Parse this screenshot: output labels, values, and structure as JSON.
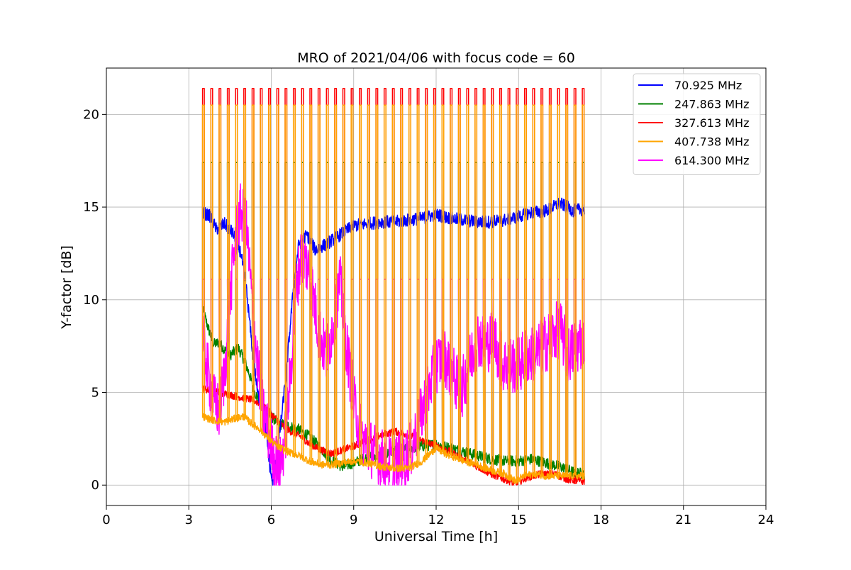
{
  "chart_data": {
    "type": "line",
    "title": "MRO of 2021/04/06 with focus code = 60",
    "xlabel": "Universal Time [h]",
    "ylabel": "Y-factor [dB]",
    "xlim": [
      0,
      24
    ],
    "ylim": [
      -1.1,
      22.5
    ],
    "xticks": [
      "0",
      "3",
      "6",
      "9",
      "12",
      "15",
      "18",
      "21",
      "24"
    ],
    "yticks": [
      "0",
      "5",
      "10",
      "15",
      "20"
    ],
    "grid": true,
    "legend_position": "top-right",
    "x_range_of_data": [
      3.5,
      17.4
    ],
    "calibration_pulses": {
      "count": 47,
      "start_h": 3.5,
      "end_h": 17.32,
      "levels_dB": {
        "327.613 MHz": 21.4,
        "407.738 MHz": 20.5,
        "614.300 MHz": 11.1,
        "247.863 MHz": 17.4
      }
    },
    "series": [
      {
        "name": "70.925 MHz",
        "color": "#0000ff",
        "points": [
          [
            3.5,
            14.7
          ],
          [
            3.8,
            14.5
          ],
          [
            4.0,
            13.8
          ],
          [
            4.3,
            14.1
          ],
          [
            4.6,
            13.6
          ],
          [
            4.9,
            12.5
          ],
          [
            5.1,
            10.5
          ],
          [
            5.3,
            7.5
          ],
          [
            5.5,
            5.0
          ],
          [
            5.7,
            4.0
          ],
          [
            5.8,
            3.0
          ],
          [
            5.95,
            1.0
          ],
          [
            6.05,
            0.1
          ],
          [
            6.2,
            1.5
          ],
          [
            6.4,
            4.0
          ],
          [
            6.6,
            7.0
          ],
          [
            6.8,
            10.5
          ],
          [
            7.0,
            13.0
          ],
          [
            7.3,
            13.5
          ],
          [
            7.6,
            12.7
          ],
          [
            8.0,
            13.0
          ],
          [
            8.5,
            13.5
          ],
          [
            9.0,
            14.0
          ],
          [
            9.5,
            14.1
          ],
          [
            10.0,
            14.2
          ],
          [
            10.5,
            14.2
          ],
          [
            11.0,
            14.3
          ],
          [
            11.5,
            14.4
          ],
          [
            12.0,
            14.6
          ],
          [
            12.5,
            14.4
          ],
          [
            13.0,
            14.3
          ],
          [
            13.5,
            14.2
          ],
          [
            14.0,
            14.2
          ],
          [
            14.5,
            14.3
          ],
          [
            15.0,
            14.5
          ],
          [
            15.5,
            14.7
          ],
          [
            16.0,
            14.8
          ],
          [
            16.5,
            15.2
          ],
          [
            17.0,
            14.8
          ],
          [
            17.4,
            14.9
          ]
        ]
      },
      {
        "name": "247.863 MHz",
        "color": "#008000",
        "points": [
          [
            3.5,
            9.5
          ],
          [
            3.7,
            8.5
          ],
          [
            3.9,
            7.6
          ],
          [
            4.1,
            7.7
          ],
          [
            4.3,
            7.3
          ],
          [
            4.5,
            7.0
          ],
          [
            4.8,
            7.4
          ],
          [
            5.0,
            6.8
          ],
          [
            5.2,
            6.0
          ],
          [
            5.4,
            5.0
          ],
          [
            5.6,
            4.5
          ],
          [
            5.8,
            4.0
          ],
          [
            6.0,
            3.7
          ],
          [
            6.3,
            3.3
          ],
          [
            6.6,
            3.2
          ],
          [
            7.0,
            3.0
          ],
          [
            7.4,
            2.6
          ],
          [
            7.8,
            2.0
          ],
          [
            8.2,
            1.3
          ],
          [
            8.6,
            1.0
          ],
          [
            9.0,
            1.2
          ],
          [
            9.5,
            1.5
          ],
          [
            10.0,
            1.6
          ],
          [
            10.5,
            1.8
          ],
          [
            11.0,
            2.0
          ],
          [
            11.5,
            2.1
          ],
          [
            12.0,
            2.2
          ],
          [
            12.5,
            2.0
          ],
          [
            13.0,
            1.8
          ],
          [
            13.5,
            1.6
          ],
          [
            14.0,
            1.4
          ],
          [
            14.5,
            1.3
          ],
          [
            15.0,
            1.3
          ],
          [
            15.5,
            1.4
          ],
          [
            16.0,
            1.2
          ],
          [
            16.5,
            1.0
          ],
          [
            17.0,
            0.7
          ],
          [
            17.4,
            0.6
          ]
        ]
      },
      {
        "name": "327.613 MHz",
        "color": "#ff0000",
        "points": [
          [
            3.5,
            5.2
          ],
          [
            3.8,
            5.1
          ],
          [
            4.1,
            5.0
          ],
          [
            4.4,
            4.9
          ],
          [
            4.7,
            4.8
          ],
          [
            5.0,
            4.7
          ],
          [
            5.3,
            4.6
          ],
          [
            5.6,
            4.4
          ],
          [
            5.9,
            4.0
          ],
          [
            6.2,
            3.5
          ],
          [
            6.5,
            3.1
          ],
          [
            6.8,
            2.8
          ],
          [
            7.1,
            2.6
          ],
          [
            7.4,
            2.2
          ],
          [
            7.8,
            1.9
          ],
          [
            8.2,
            1.7
          ],
          [
            8.6,
            1.9
          ],
          [
            9.0,
            2.1
          ],
          [
            9.5,
            2.4
          ],
          [
            10.0,
            2.7
          ],
          [
            10.5,
            2.9
          ],
          [
            11.0,
            2.7
          ],
          [
            11.5,
            2.4
          ],
          [
            12.0,
            2.1
          ],
          [
            12.5,
            1.8
          ],
          [
            13.0,
            1.4
          ],
          [
            13.5,
            1.0
          ],
          [
            14.0,
            0.6
          ],
          [
            14.5,
            0.3
          ],
          [
            14.9,
            0.1
          ],
          [
            15.3,
            0.4
          ],
          [
            15.8,
            0.6
          ],
          [
            16.3,
            0.6
          ],
          [
            16.8,
            0.3
          ],
          [
            17.4,
            0.2
          ]
        ]
      },
      {
        "name": "407.738 MHz",
        "color": "#ffa500",
        "points": [
          [
            3.5,
            3.7
          ],
          [
            3.9,
            3.5
          ],
          [
            4.3,
            3.4
          ],
          [
            4.7,
            3.6
          ],
          [
            5.0,
            3.7
          ],
          [
            5.3,
            3.3
          ],
          [
            5.6,
            3.0
          ],
          [
            5.9,
            2.5
          ],
          [
            6.2,
            2.1
          ],
          [
            6.6,
            1.8
          ],
          [
            7.0,
            1.6
          ],
          [
            7.4,
            1.3
          ],
          [
            7.8,
            1.1
          ],
          [
            8.2,
            1.1
          ],
          [
            8.6,
            1.2
          ],
          [
            9.0,
            1.3
          ],
          [
            9.5,
            1.2
          ],
          [
            10.0,
            1.0
          ],
          [
            10.5,
            0.9
          ],
          [
            11.0,
            0.9
          ],
          [
            11.5,
            1.3
          ],
          [
            12.0,
            2.0
          ],
          [
            12.3,
            1.7
          ],
          [
            12.7,
            1.5
          ],
          [
            13.0,
            1.3
          ],
          [
            13.5,
            1.1
          ],
          [
            14.0,
            0.8
          ],
          [
            14.5,
            0.6
          ],
          [
            14.9,
            0.2
          ],
          [
            15.2,
            0.5
          ],
          [
            15.6,
            0.6
          ],
          [
            16.0,
            0.5
          ],
          [
            16.5,
            0.5
          ],
          [
            17.0,
            0.5
          ],
          [
            17.4,
            0.5
          ]
        ]
      },
      {
        "name": "614.300 MHz",
        "color": "#ff00ff",
        "points": [
          [
            3.5,
            8.0
          ],
          [
            3.7,
            6.0
          ],
          [
            3.9,
            4.5
          ],
          [
            4.1,
            4.0
          ],
          [
            4.3,
            6.0
          ],
          [
            4.5,
            10.0
          ],
          [
            4.7,
            13.5
          ],
          [
            4.9,
            14.8
          ],
          [
            5.1,
            13.8
          ],
          [
            5.3,
            10.0
          ],
          [
            5.5,
            6.5
          ],
          [
            5.7,
            4.0
          ],
          [
            5.9,
            2.8
          ],
          [
            6.1,
            1.5
          ],
          [
            6.3,
            0.8
          ],
          [
            6.5,
            2.5
          ],
          [
            6.7,
            6.0
          ],
          [
            6.9,
            10.5
          ],
          [
            7.1,
            12.5
          ],
          [
            7.4,
            11.5
          ],
          [
            7.7,
            8.5
          ],
          [
            8.0,
            7.0
          ],
          [
            8.3,
            9.0
          ],
          [
            8.5,
            11.0
          ],
          [
            8.7,
            8.0
          ],
          [
            9.0,
            4.5
          ],
          [
            9.3,
            2.5
          ],
          [
            9.6,
            2.0
          ],
          [
            10.0,
            1.5
          ],
          [
            10.4,
            1.2
          ],
          [
            10.8,
            1.3
          ],
          [
            11.1,
            2.0
          ],
          [
            11.4,
            3.5
          ],
          [
            11.7,
            5.0
          ],
          [
            12.0,
            6.5
          ],
          [
            12.3,
            7.0
          ],
          [
            12.6,
            6.0
          ],
          [
            12.9,
            5.0
          ],
          [
            13.2,
            6.5
          ],
          [
            13.5,
            8.0
          ],
          [
            13.8,
            7.5
          ],
          [
            14.1,
            8.0
          ],
          [
            14.4,
            6.5
          ],
          [
            14.7,
            6.5
          ],
          [
            15.0,
            6.5
          ],
          [
            15.3,
            7.0
          ],
          [
            15.6,
            7.0
          ],
          [
            15.9,
            7.5
          ],
          [
            16.2,
            8.0
          ],
          [
            16.5,
            8.5
          ],
          [
            16.8,
            7.0
          ],
          [
            17.1,
            7.5
          ],
          [
            17.4,
            8.0
          ]
        ]
      }
    ]
  }
}
